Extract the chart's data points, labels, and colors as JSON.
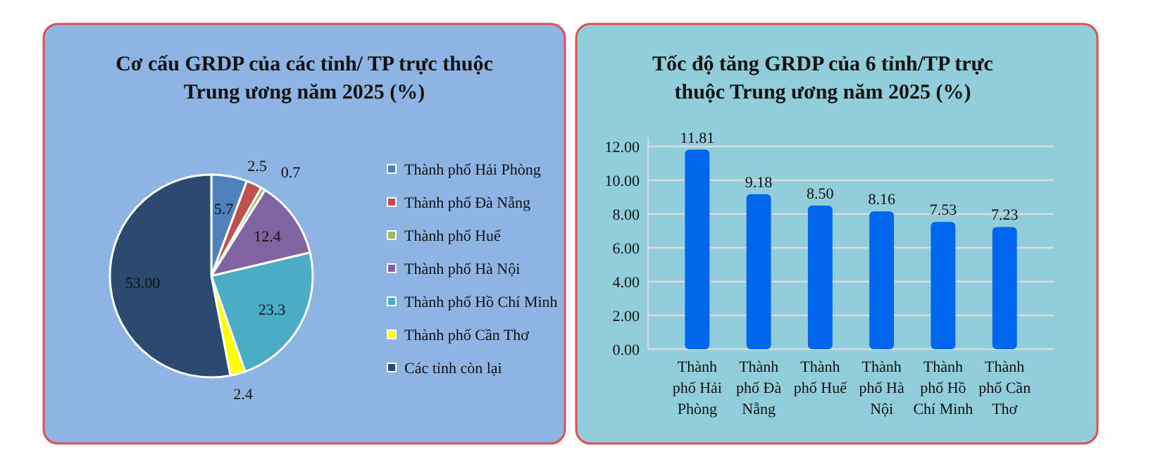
{
  "chart_data": [
    {
      "type": "pie",
      "title": "Cơ cấu GRDP của các tỉnh/ TP trực thuộc Trung ương năm 2025 (%)",
      "categories": [
        "Thành phố Hải Phòng",
        "Thành phố Đà Nẵng",
        "Thành phố Huế",
        "Thành phố Hà Nội",
        "Thành phố Hồ Chí Minh",
        "Thành phố Cần Thơ",
        "Các tỉnh còn lại"
      ],
      "values": [
        5.7,
        2.5,
        0.7,
        12.4,
        23.3,
        2.4,
        53.0
      ],
      "value_labels": [
        "5.7",
        "2.5",
        "0.7",
        "12.4",
        "23.3",
        "2.4",
        "53.00"
      ],
      "colors": [
        "#4f81bd",
        "#c0504d",
        "#9bbb59",
        "#8064a2",
        "#4bacc6",
        "#ffff00",
        "#2c4a70"
      ],
      "legend": "right"
    },
    {
      "type": "bar",
      "title": "Tốc độ tăng GRDP của 6 tỉnh/TP trực thuộc Trung ương năm 2025 (%)",
      "categories": [
        "Thành phố Hải Phòng",
        "Thành phố Đà Nẵng",
        "Thành phố Huế",
        "Thành phố Hà Nội",
        "Thành phố Hồ Chí Minh",
        "Thành phố Cần Thơ"
      ],
      "values": [
        11.81,
        9.18,
        8.5,
        8.16,
        7.53,
        7.23
      ],
      "value_labels": [
        "11.81",
        "9.18",
        "8.50",
        "8.16",
        "7.53",
        "7.23"
      ],
      "color": "#0066ee",
      "ylim": [
        0,
        12.5
      ],
      "yticks": [
        {
          "value": 0,
          "label": "0.00"
        },
        {
          "value": 2,
          "label": "2.00"
        },
        {
          "value": 4,
          "label": "4.00"
        },
        {
          "value": 6,
          "label": "6.00"
        },
        {
          "value": 8,
          "label": "8.00"
        },
        {
          "value": 10,
          "label": "10.00"
        },
        {
          "value": 12,
          "label": "12.00"
        }
      ],
      "grid": "y"
    }
  ]
}
